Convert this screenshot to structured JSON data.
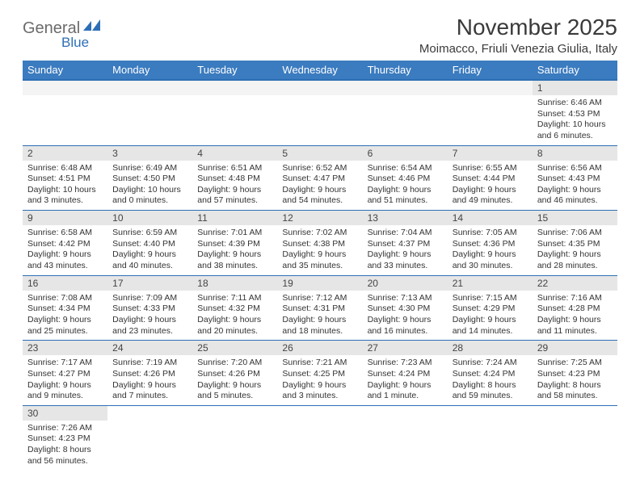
{
  "logo": {
    "text1": "General",
    "text2": "Blue"
  },
  "title": "November 2025",
  "location": "Moimacco, Friuli Venezia Giulia, Italy",
  "colors": {
    "header_bg": "#3b7bbf",
    "header_border": "#2d6fb5",
    "daynum_bg": "#e6e6e6",
    "logo_gray": "#6b6b6b",
    "logo_blue": "#2d6fb5"
  },
  "daynames": [
    "Sunday",
    "Monday",
    "Tuesday",
    "Wednesday",
    "Thursday",
    "Friday",
    "Saturday"
  ],
  "weeks": [
    [
      null,
      null,
      null,
      null,
      null,
      null,
      {
        "n": "1",
        "sr": "6:46 AM",
        "ss": "4:53 PM",
        "dl": "10 hours and 6 minutes."
      }
    ],
    [
      {
        "n": "2",
        "sr": "6:48 AM",
        "ss": "4:51 PM",
        "dl": "10 hours and 3 minutes."
      },
      {
        "n": "3",
        "sr": "6:49 AM",
        "ss": "4:50 PM",
        "dl": "10 hours and 0 minutes."
      },
      {
        "n": "4",
        "sr": "6:51 AM",
        "ss": "4:48 PM",
        "dl": "9 hours and 57 minutes."
      },
      {
        "n": "5",
        "sr": "6:52 AM",
        "ss": "4:47 PM",
        "dl": "9 hours and 54 minutes."
      },
      {
        "n": "6",
        "sr": "6:54 AM",
        "ss": "4:46 PM",
        "dl": "9 hours and 51 minutes."
      },
      {
        "n": "7",
        "sr": "6:55 AM",
        "ss": "4:44 PM",
        "dl": "9 hours and 49 minutes."
      },
      {
        "n": "8",
        "sr": "6:56 AM",
        "ss": "4:43 PM",
        "dl": "9 hours and 46 minutes."
      }
    ],
    [
      {
        "n": "9",
        "sr": "6:58 AM",
        "ss": "4:42 PM",
        "dl": "9 hours and 43 minutes."
      },
      {
        "n": "10",
        "sr": "6:59 AM",
        "ss": "4:40 PM",
        "dl": "9 hours and 40 minutes."
      },
      {
        "n": "11",
        "sr": "7:01 AM",
        "ss": "4:39 PM",
        "dl": "9 hours and 38 minutes."
      },
      {
        "n": "12",
        "sr": "7:02 AM",
        "ss": "4:38 PM",
        "dl": "9 hours and 35 minutes."
      },
      {
        "n": "13",
        "sr": "7:04 AM",
        "ss": "4:37 PM",
        "dl": "9 hours and 33 minutes."
      },
      {
        "n": "14",
        "sr": "7:05 AM",
        "ss": "4:36 PM",
        "dl": "9 hours and 30 minutes."
      },
      {
        "n": "15",
        "sr": "7:06 AM",
        "ss": "4:35 PM",
        "dl": "9 hours and 28 minutes."
      }
    ],
    [
      {
        "n": "16",
        "sr": "7:08 AM",
        "ss": "4:34 PM",
        "dl": "9 hours and 25 minutes."
      },
      {
        "n": "17",
        "sr": "7:09 AM",
        "ss": "4:33 PM",
        "dl": "9 hours and 23 minutes."
      },
      {
        "n": "18",
        "sr": "7:11 AM",
        "ss": "4:32 PM",
        "dl": "9 hours and 20 minutes."
      },
      {
        "n": "19",
        "sr": "7:12 AM",
        "ss": "4:31 PM",
        "dl": "9 hours and 18 minutes."
      },
      {
        "n": "20",
        "sr": "7:13 AM",
        "ss": "4:30 PM",
        "dl": "9 hours and 16 minutes."
      },
      {
        "n": "21",
        "sr": "7:15 AM",
        "ss": "4:29 PM",
        "dl": "9 hours and 14 minutes."
      },
      {
        "n": "22",
        "sr": "7:16 AM",
        "ss": "4:28 PM",
        "dl": "9 hours and 11 minutes."
      }
    ],
    [
      {
        "n": "23",
        "sr": "7:17 AM",
        "ss": "4:27 PM",
        "dl": "9 hours and 9 minutes."
      },
      {
        "n": "24",
        "sr": "7:19 AM",
        "ss": "4:26 PM",
        "dl": "9 hours and 7 minutes."
      },
      {
        "n": "25",
        "sr": "7:20 AM",
        "ss": "4:26 PM",
        "dl": "9 hours and 5 minutes."
      },
      {
        "n": "26",
        "sr": "7:21 AM",
        "ss": "4:25 PM",
        "dl": "9 hours and 3 minutes."
      },
      {
        "n": "27",
        "sr": "7:23 AM",
        "ss": "4:24 PM",
        "dl": "9 hours and 1 minute."
      },
      {
        "n": "28",
        "sr": "7:24 AM",
        "ss": "4:24 PM",
        "dl": "8 hours and 59 minutes."
      },
      {
        "n": "29",
        "sr": "7:25 AM",
        "ss": "4:23 PM",
        "dl": "8 hours and 58 minutes."
      }
    ],
    [
      {
        "n": "30",
        "sr": "7:26 AM",
        "ss": "4:23 PM",
        "dl": "8 hours and 56 minutes."
      },
      null,
      null,
      null,
      null,
      null,
      null
    ]
  ],
  "labels": {
    "sunrise": "Sunrise:",
    "sunset": "Sunset:",
    "daylight": "Daylight:"
  }
}
